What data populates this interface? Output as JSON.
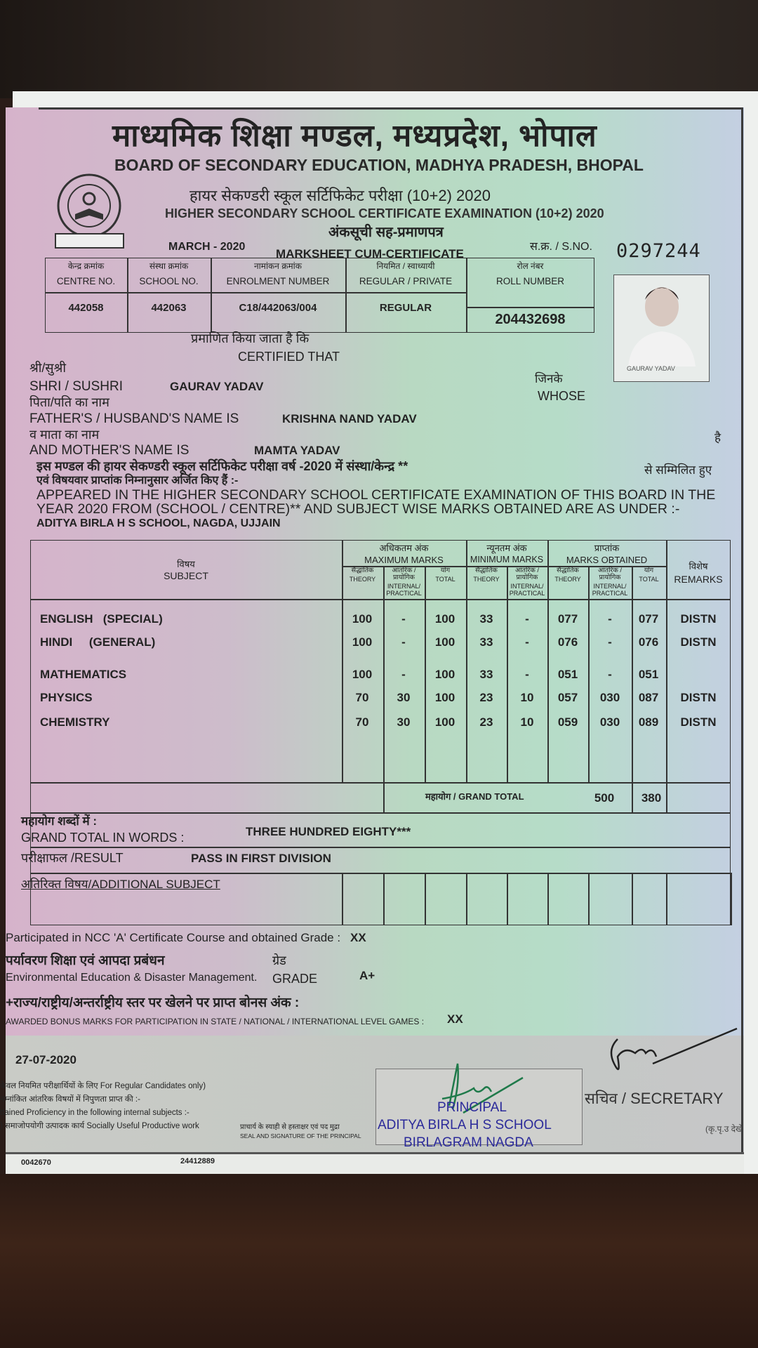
{
  "header": {
    "title_hi": "माध्यमिक शिक्षा मण्डल, मध्यप्रदेश, भोपाल",
    "title_en": "BOARD OF SECONDARY EDUCATION, MADHYA PRADESH, BHOPAL",
    "exam_hi": "हायर सेकण्डरी स्कूल सर्टिफिकेट परीक्षा (10+2) 2020",
    "exam_en": "HIGHER SECONDARY SCHOOL CERTIFICATE EXAMINATION (10+2) 2020",
    "doc_hi": "अंकसूची सह-प्रमाणपत्र",
    "session": "MARCH - 2020",
    "doc_en": "MARKSHEET CUM-CERTIFICATE",
    "sno_label": "स.क्र. / S.NO.",
    "sno": "0297244",
    "logo_text": "माध्यमिक शिक्षा मण्डल मध्यप्रदेश"
  },
  "info": {
    "headers": [
      [
        "केन्द्र क्रमांक",
        "CENTRE NO."
      ],
      [
        "संस्था क्रमांक",
        "SCHOOL NO."
      ],
      [
        "नामांकन क्रमांक",
        "ENROLMENT NUMBER"
      ],
      [
        "नियमित / स्वाध्यायी",
        "REGULAR / PRIVATE"
      ],
      [
        "रोल नंबर",
        "ROLL NUMBER"
      ]
    ],
    "values": [
      "442058",
      "442063",
      "C18/442063/004",
      "REGULAR",
      "204432698"
    ]
  },
  "photo_caption": "GAURAV YADAV",
  "cert": {
    "certified_hi": "प्रमाणित किया जाता है कि",
    "certified_en": "CERTIFIED THAT",
    "shri_hi": "श्री/सुश्री",
    "shri_en": "SHRI / SUSHRI",
    "name": "GAURAV YADAV",
    "whose_hi": "जिनके",
    "whose_en": "WHOSE",
    "father_hi": "पिता/पति का नाम",
    "father_en": "FATHER'S / HUSBAND'S NAME IS",
    "father": "KRISHNA NAND YADAV",
    "mother_hi": "व माता का नाम",
    "mother_en": "AND MOTHER'S NAME IS",
    "mother": "MAMTA YADAV",
    "hai": "है",
    "para_hi1": "इस मण्डल की हायर सेकण्डरी स्कूल सर्टिफिकेट परीक्षा वर्ष -2020 में संस्था/केन्द्र **",
    "para_hi_right": "से सम्मिलित हुए",
    "para_hi2": "एवं विषयवार प्राप्तांक निम्नानुसार अर्जित किए हैं :-",
    "para_en1": "APPEARED IN THE HIGHER SECONDARY SCHOOL CERTIFICATE EXAMINATION OF THIS BOARD IN THE",
    "para_en2": "YEAR 2020 FROM (SCHOOL / CENTRE)** AND SUBJECT WISE MARKS OBTAINED ARE AS UNDER :-",
    "school": "ADITYA BIRLA H S SCHOOL, NAGDA, UJJAIN"
  },
  "table": {
    "subject_hi": "विषय",
    "subject_en": "SUBJECT",
    "max_hi": "अधिकतम अंक",
    "max_en": "MAXIMUM MARKS",
    "min_hi": "न्यूनतम अंक",
    "min_en": "MINIMUM MARKS",
    "obt_hi": "प्राप्तांक",
    "obt_en": "MARKS OBTAINED",
    "remarks_hi": "विशेष",
    "remarks_en": "REMARKS",
    "theory_hi": "सैद्धांतिक",
    "theory_en": "THEORY",
    "int_hi": "आंतरिक / प्रायोगिक",
    "int_en": "INTERNAL/ PRACTICAL",
    "total_hi": "योग",
    "total_en": "TOTAL",
    "rows": [
      {
        "subject": "ENGLISH   (SPECIAL)",
        "max_th": "100",
        "max_int": "-",
        "max_tot": "100",
        "min_th": "33",
        "min_int": "-",
        "ob_th": "077",
        "ob_int": "-",
        "ob_tot": "077",
        "remarks": "DISTN"
      },
      {
        "subject": "HINDI     (GENERAL)",
        "max_th": "100",
        "max_int": "-",
        "max_tot": "100",
        "min_th": "33",
        "min_int": "-",
        "ob_th": "076",
        "ob_int": "-",
        "ob_tot": "076",
        "remarks": "DISTN"
      },
      {
        "subject": "MATHEMATICS",
        "max_th": "100",
        "max_int": "-",
        "max_tot": "100",
        "min_th": "33",
        "min_int": "-",
        "ob_th": "051",
        "ob_int": "-",
        "ob_tot": "051",
        "remarks": ""
      },
      {
        "subject": "PHYSICS",
        "max_th": "70",
        "max_int": "30",
        "max_tot": "100",
        "min_th": "23",
        "min_int": "10",
        "ob_th": "057",
        "ob_int": "030",
        "ob_tot": "087",
        "remarks": "DISTN"
      },
      {
        "subject": "CHEMISTRY",
        "max_th": "70",
        "max_int": "30",
        "max_tot": "100",
        "min_th": "23",
        "min_int": "10",
        "ob_th": "059",
        "ob_int": "030",
        "ob_tot": "089",
        "remarks": "DISTN"
      }
    ],
    "grand_total_label": "महायोग / GRAND TOTAL",
    "grand_max": "500",
    "grand_obt": "380",
    "words_hi": "महायोग शब्दों में :",
    "words_en": "GRAND TOTAL IN WORDS :",
    "words": "THREE HUNDRED EIGHTY***",
    "result_label": "परीक्षाफल /RESULT",
    "result": "PASS IN FIRST DIVISION",
    "additional_label": "अतिरिक्त विषय/ADDITIONAL SUBJECT"
  },
  "extra": {
    "ncc_label": "Participated in NCC 'A' Certificate Course and obtained Grade :",
    "ncc": "XX",
    "env_hi": "पर्यावरण शिक्षा एवं आपदा प्रबंधन",
    "env_en": "Environmental Education & Disaster Management.",
    "grade_hi": "ग्रेड",
    "grade_en": "GRADE",
    "env_grade": "A+",
    "bonus_hi": "+राज्य/राष्ट्रीय/अन्तर्राष्ट्रीय स्तर पर खेलने पर प्राप्त बोनस अंक :",
    "bonus_en": "AWARDED BONUS MARKS FOR PARTICIPATION IN STATE / NATIONAL / INTERNATIONAL LEVEL GAMES :",
    "bonus": "XX"
  },
  "footer": {
    "date": "27-07-2020",
    "line1": "केवल नियमित परीक्षार्थियों के लिए For Regular Candidates only)",
    "line2": "नम्नांकित आंतरिक विषयों में निपुणता प्राप्त की :-",
    "line3": "ttained Proficiency in the following internal subjects :-",
    "line4": ") समाजोपयोगी उत्पादक कार्य Socially Useful Productive work",
    "seal_hi": "प्राचार्य के स्याही से हस्ताक्षर एवं पद मुद्रा",
    "seal_en": "SEAL AND SIGNATURE OF THE PRINCIPAL",
    "stamp1": "PRINCIPAL",
    "stamp2": "ADITYA BIRLA H S SCHOOL",
    "stamp3": "BIRLAGRAM NAGDA",
    "secretary": "सचिव / SECRETARY",
    "pto": "(कृ.पृ.उ देखें",
    "code1": "0042670",
    "code2": "24412889"
  }
}
